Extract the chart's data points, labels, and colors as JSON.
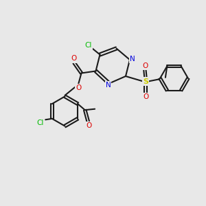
{
  "bg_color": "#e8e8e8",
  "bond_color": "#1a1a1a",
  "bond_lw": 1.5,
  "atom_colors": {
    "Cl": "#00bb00",
    "N": "#0000dd",
    "O": "#dd0000",
    "S": "#cccc00",
    "C": "#1a1a1a"
  },
  "figsize": [
    3.0,
    3.0
  ],
  "dpi": 100
}
